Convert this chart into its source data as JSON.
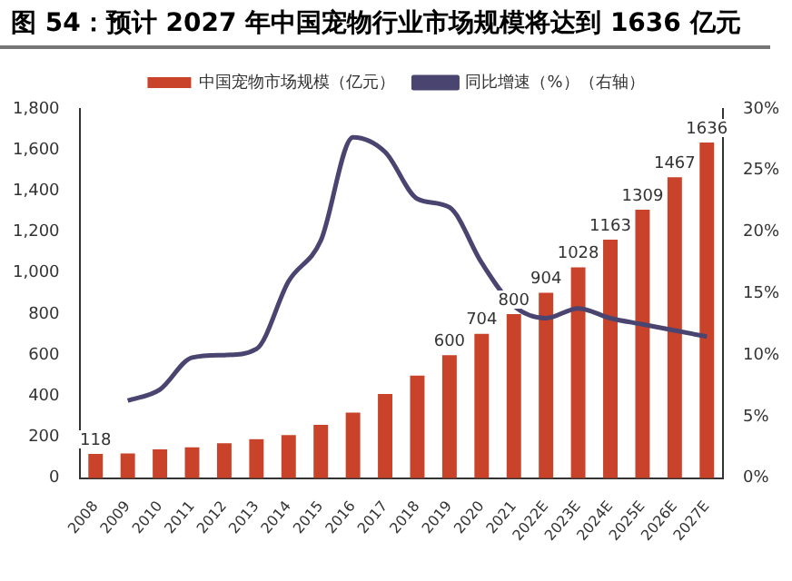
{
  "chart_data": {
    "type": "bar",
    "title": "图 54：预计 2027 年中国宠物行业市场规模将达到 1636 亿元",
    "categories": [
      "2008",
      "2009",
      "2010",
      "2011",
      "2012",
      "2013",
      "2014",
      "2015",
      "2016",
      "2017",
      "2018",
      "2019",
      "2020",
      "2021",
      "2022E",
      "2023E",
      "2024E",
      "2025E",
      "2026E",
      "2027E"
    ],
    "series": [
      {
        "name": "中国宠物市场规模（亿元）",
        "color": "#c9432a",
        "values": [
          118,
          120,
          140,
          150,
          170,
          190,
          210,
          260,
          320,
          410,
          500,
          600,
          704,
          800,
          904,
          1028,
          1163,
          1309,
          1467,
          1636
        ],
        "value_labels": [
          "118",
          null,
          null,
          null,
          null,
          null,
          null,
          null,
          null,
          null,
          null,
          "600",
          "704",
          "800",
          "904",
          "1028",
          "1163",
          "1309",
          "1467",
          "1636"
        ]
      },
      {
        "name": "同比增速（%）（右轴）",
        "type": "line",
        "axis": "y2",
        "color": "#4a4470",
        "values": [
          null,
          6.3,
          7.2,
          9.8,
          10,
          10.5,
          16,
          19.3,
          27.7,
          26.5,
          22.7,
          22,
          17.5,
          14,
          13,
          13.8,
          13,
          12.5,
          12,
          11.5
        ]
      }
    ],
    "ylim": [
      0,
      1800
    ],
    "yticks": [
      {
        "value": 0,
        "label": "0"
      },
      {
        "value": 200,
        "label": "200"
      },
      {
        "value": 400,
        "label": "400"
      },
      {
        "value": 600,
        "label": "600"
      },
      {
        "value": 800,
        "label": "800"
      },
      {
        "value": 1000,
        "label": "1,000"
      },
      {
        "value": 1200,
        "label": "1,200"
      },
      {
        "value": 1400,
        "label": "1,400"
      },
      {
        "value": 1600,
        "label": "1,600"
      },
      {
        "value": 1800,
        "label": "1,800"
      }
    ],
    "y2lim": [
      0,
      30
    ],
    "y2ticks": [
      {
        "value": 0,
        "label": "0%"
      },
      {
        "value": 5,
        "label": "5%"
      },
      {
        "value": 10,
        "label": "10%"
      },
      {
        "value": 15,
        "label": "15%"
      },
      {
        "value": 20,
        "label": "20%"
      },
      {
        "value": 25,
        "label": "25%"
      },
      {
        "value": 30,
        "label": "30%"
      }
    ],
    "legend": "top",
    "grid": false,
    "marker": "none"
  }
}
